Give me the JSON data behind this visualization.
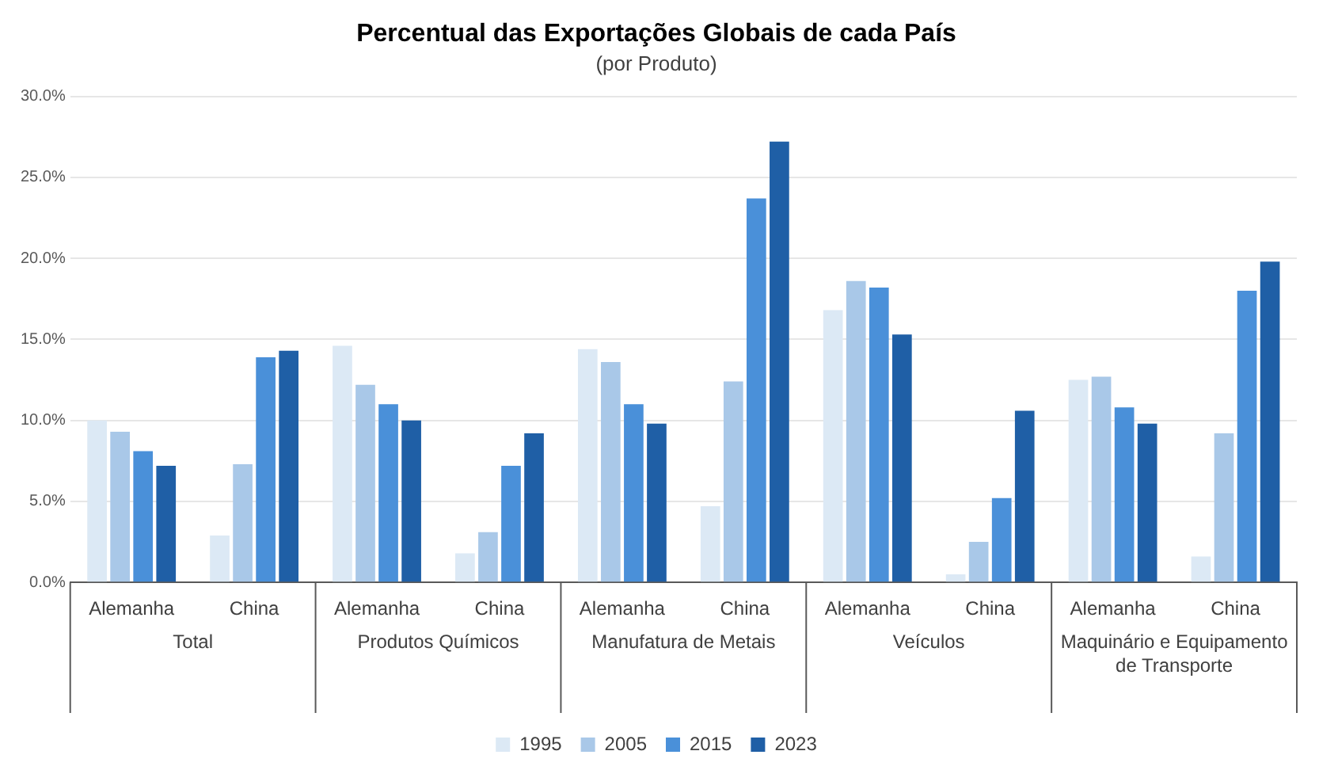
{
  "chart_data": {
    "type": "bar",
    "title": "Percentual das Exportações Globais de cada País",
    "subtitle": "(por Produto)",
    "categories": [
      "Alemanha",
      "China",
      "Alemanha",
      "China",
      "Alemanha",
      "China",
      "Alemanha",
      "China",
      "Alemanha",
      "China"
    ],
    "annotations": [
      "Total",
      "Produtos Químicos",
      "Manufatura de Metais",
      "Veículos",
      "Maquinário e Equipamento de Transporte"
    ],
    "series": [
      {
        "name": "1995",
        "color": "#dce9f5",
        "values": [
          10.0,
          2.9,
          14.6,
          1.8,
          14.4,
          4.7,
          16.8,
          0.5,
          12.5,
          1.6
        ]
      },
      {
        "name": "2005",
        "color": "#a9c8e8",
        "values": [
          9.3,
          7.3,
          12.2,
          3.1,
          13.6,
          12.4,
          18.6,
          2.5,
          12.7,
          9.2
        ]
      },
      {
        "name": "2015",
        "color": "#4a90d9",
        "values": [
          8.1,
          13.9,
          11.0,
          7.2,
          11.0,
          23.7,
          18.2,
          5.2,
          10.8,
          18.0
        ]
      },
      {
        "name": "2023",
        "color": "#1f5fa6",
        "values": [
          7.2,
          14.3,
          10.0,
          9.2,
          9.8,
          27.2,
          15.3,
          10.6,
          9.8,
          19.8
        ]
      }
    ],
    "ylim": [
      0,
      30
    ],
    "yticks": [
      {
        "value": 0,
        "label": "0.0%"
      },
      {
        "value": 5,
        "label": "5.0%"
      },
      {
        "value": 10,
        "label": "10.0%"
      },
      {
        "value": 15,
        "label": "15.0%"
      },
      {
        "value": 20,
        "label": "20.0%"
      },
      {
        "value": 25,
        "label": "25.0%"
      },
      {
        "value": 30,
        "label": "30.0%"
      }
    ],
    "grid": "y",
    "legend": "bottom"
  }
}
